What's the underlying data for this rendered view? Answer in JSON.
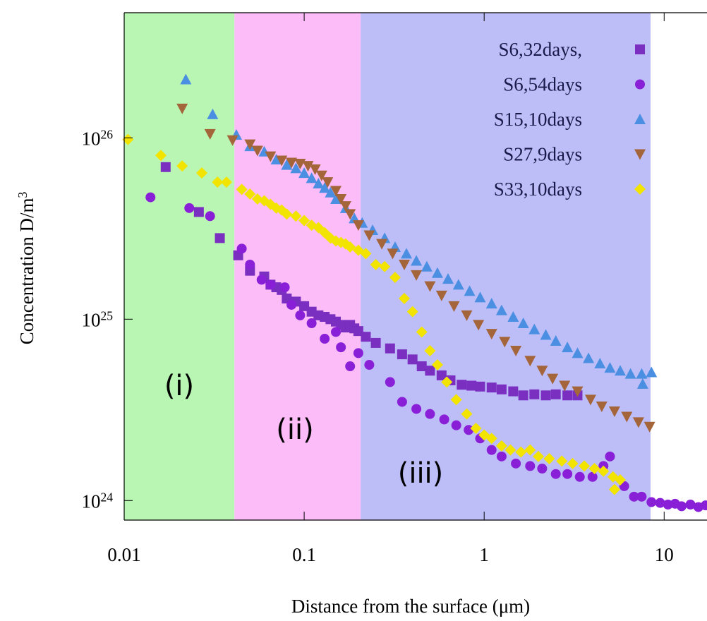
{
  "chart_data": {
    "type": "scatter",
    "x_label": "Distance from the surface (μm)",
    "y_label": "Concentration D/m^3",
    "xscale": "log",
    "yscale": "log",
    "xlim": [
      0.01,
      17.3
    ],
    "ylim": [
      7.8e+23,
      4.9e+26
    ],
    "xticks": [
      0.01,
      0.1,
      1,
      10
    ],
    "yticks": [
      {
        "value": 1e+24,
        "label": "10^24"
      },
      {
        "value": 1e+25,
        "label": "10^25"
      },
      {
        "value": 1e+26,
        "label": "10^26"
      }
    ],
    "legend": "upper right",
    "regions": [
      {
        "label": "(i)",
        "from": 0.01,
        "to": 0.041,
        "color": "#b9f6b3"
      },
      {
        "label": "(ii)",
        "from": 0.041,
        "to": 0.206,
        "color": "#fbbcf8"
      },
      {
        "label": "(iii)",
        "from": 0.206,
        "to": 8.4,
        "color": "#bdbdf8"
      }
    ],
    "series": [
      {
        "name": "S6,32days,",
        "color": "#7a2fc0",
        "marker": "square",
        "x": [
          0.017,
          0.026,
          0.034,
          0.043,
          0.05,
          0.06,
          0.065,
          0.07,
          0.075,
          0.08,
          0.09,
          0.1,
          0.11,
          0.12,
          0.13,
          0.14,
          0.15,
          0.16,
          0.17,
          0.18,
          0.19,
          0.2,
          0.22,
          0.25,
          0.3,
          0.35,
          0.4,
          0.45,
          0.5,
          0.58,
          0.65,
          0.75,
          0.85,
          0.95,
          1.1,
          1.25,
          1.45,
          1.65,
          1.9,
          2.2,
          2.5,
          2.9,
          3.3
        ],
        "values": [
          6.9e+25,
          3.9e+25,
          2.8e+25,
          2.25e+25,
          1.85e+25,
          1.72e+25,
          1.55e+25,
          1.5e+25,
          1.45e+25,
          1.3e+25,
          1.25e+25,
          1.18e+25,
          1.1e+25,
          1.05e+25,
          1.03e+25,
          1e+25,
          9.7e+24,
          9.3e+24,
          9e+24,
          9.3e+24,
          8.9e+24,
          8.6e+24,
          8e+24,
          7.4e+24,
          6.9e+24,
          6.4e+24,
          6e+24,
          5.5e+24,
          5.2e+24,
          4.9e+24,
          4.6e+24,
          4.35e+24,
          4.3e+24,
          4.25e+24,
          4.2e+24,
          4.1e+24,
          4e+24,
          3.8e+24,
          3.85e+24,
          3.8e+24,
          3.85e+24,
          3.8e+24,
          3.8e+24
        ]
      },
      {
        "name": "S6,54days",
        "color": "#8a1fd8",
        "marker": "circle",
        "x": [
          0.014,
          0.023,
          0.03,
          0.045,
          0.05,
          0.058,
          0.065,
          0.078,
          0.085,
          0.095,
          0.11,
          0.13,
          0.15,
          0.16,
          0.18,
          0.2,
          0.23,
          0.3,
          0.35,
          0.42,
          0.5,
          0.6,
          0.7,
          0.82,
          0.95,
          1.1,
          1.25,
          1.5,
          1.8,
          2.1,
          2.5,
          2.9,
          3.4,
          4,
          4.6,
          5,
          6,
          6.8,
          7.5,
          8.5,
          9.5,
          10.5,
          11.5,
          12.5,
          14,
          15.5,
          17
        ],
        "values": [
          4.7e+25,
          4.1e+25,
          3.7e+25,
          2.45e+25,
          2e+25,
          1.65e+25,
          1.55e+25,
          1.5e+25,
          1.2e+25,
          1.05e+25,
          9.5e+24,
          7.8e+24,
          8.5e+24,
          7e+24,
          5.5e+24,
          6.5e+24,
          5.6e+24,
          4.5e+24,
          3.5e+24,
          3.2e+24,
          3e+24,
          2.8e+24,
          2.6e+24,
          2.45e+24,
          2.2e+24,
          1.9e+24,
          1.75e+24,
          1.6e+24,
          1.55e+24,
          1.5e+24,
          1.4e+24,
          1.4e+24,
          1.35e+24,
          1.35e+24,
          1.55e+24,
          1.75e+24,
          1.2e+24,
          1.05e+24,
          1.05e+24,
          9.8e+23,
          9.7e+23,
          9.5e+23,
          9.6e+23,
          9.3e+23,
          9.5e+23,
          9.2e+23,
          9.4e+23
        ]
      },
      {
        "name": "S15,10days",
        "color": "#4a8fe2",
        "marker": "triangle-up",
        "x": [
          0.022,
          0.031,
          0.042,
          0.05,
          0.06,
          0.07,
          0.08,
          0.09,
          0.1,
          0.11,
          0.12,
          0.13,
          0.14,
          0.15,
          0.17,
          0.19,
          0.21,
          0.24,
          0.28,
          0.32,
          0.37,
          0.42,
          0.48,
          0.55,
          0.63,
          0.72,
          0.83,
          0.95,
          1.1,
          1.25,
          1.45,
          1.65,
          1.9,
          2.2,
          2.5,
          2.9,
          3.3,
          3.8,
          4.4,
          5,
          5.7,
          6.5,
          7.5,
          7.6,
          8.5
        ],
        "values": [
          2.1e+26,
          1.35e+26,
          1.04e+26,
          9e+25,
          8.4e+25,
          7.6e+25,
          7.1e+25,
          6.8e+25,
          6.4e+25,
          6e+25,
          5.6e+25,
          5.3e+25,
          5e+25,
          4.6e+25,
          4.1e+25,
          3.6e+25,
          3.4e+25,
          3.1e+25,
          2.8e+25,
          2.5e+25,
          2.3e+25,
          2.1e+25,
          1.95e+25,
          1.8e+25,
          1.67e+25,
          1.55e+25,
          1.43e+25,
          1.32e+25,
          1.22e+25,
          1.12e+25,
          1.03e+25,
          9.5e+24,
          8.8e+24,
          8.2e+24,
          7.6e+24,
          7e+24,
          6.5e+24,
          6.1e+24,
          5.7e+24,
          5.4e+24,
          5.2e+24,
          5e+24,
          5e+24,
          4.4e+24,
          5.1e+24
        ]
      },
      {
        "name": "S27,9days",
        "color": "#a4653a",
        "marker": "triangle-down",
        "x": [
          0.021,
          0.03,
          0.04,
          0.05,
          0.055,
          0.065,
          0.075,
          0.085,
          0.095,
          0.105,
          0.115,
          0.125,
          0.135,
          0.15,
          0.16,
          0.17,
          0.18,
          0.2,
          0.23,
          0.27,
          0.31,
          0.36,
          0.42,
          0.5,
          0.58,
          0.68,
          0.8,
          0.93,
          1.1,
          1.3,
          1.5,
          1.8,
          2.1,
          2.4,
          2.8,
          3.3,
          3.9,
          4.5,
          5.3,
          6.2,
          7.2,
          8.3
        ],
        "values": [
          1.45e+26,
          1.05e+26,
          9.7e+25,
          9.2e+25,
          8.5e+25,
          7.9e+25,
          7.5e+25,
          7.3e+25,
          7.2e+25,
          7e+25,
          6.7e+25,
          6.2e+25,
          5.7e+25,
          5.1e+25,
          4.6e+25,
          4.2e+25,
          3.8e+25,
          3.3e+25,
          2.9e+25,
          2.6e+25,
          2.3e+25,
          2e+25,
          1.75e+25,
          1.52e+25,
          1.35e+25,
          1.18e+25,
          1.05e+25,
          9.3e+24,
          8.3e+24,
          7.5e+24,
          6.7e+24,
          5.9e+24,
          5.2e+24,
          4.7e+24,
          4.3e+24,
          4e+24,
          3.6e+24,
          3.3e+24,
          3.1e+24,
          2.9e+24,
          2.7e+24,
          2.55e+24
        ]
      },
      {
        "name": "S33,10days",
        "color": "#f3e400",
        "marker": "diamond",
        "x": [
          0.0105,
          0.016,
          0.021,
          0.027,
          0.033,
          0.037,
          0.045,
          0.05,
          0.055,
          0.06,
          0.065,
          0.07,
          0.075,
          0.08,
          0.09,
          0.1,
          0.11,
          0.12,
          0.13,
          0.14,
          0.15,
          0.16,
          0.17,
          0.18,
          0.2,
          0.22,
          0.25,
          0.28,
          0.32,
          0.36,
          0.4,
          0.45,
          0.5,
          0.55,
          0.62,
          0.7,
          0.8,
          0.9,
          1,
          1.1,
          1.25,
          1.4,
          1.6,
          1.8,
          2,
          2.3,
          2.7,
          3.1,
          3.6,
          4.1,
          4.6,
          5.2,
          5.7,
          5.3
        ],
        "values": [
          9.8e+25,
          8e+25,
          7e+25,
          6.4e+25,
          5.7e+25,
          5.7e+25,
          5.2e+25,
          4.9e+25,
          4.6e+25,
          4.5e+25,
          4.3e+25,
          4.1e+25,
          4e+25,
          3.8e+25,
          3.7e+25,
          3.5e+25,
          3.3e+25,
          3.2e+25,
          3e+25,
          2.8e+25,
          2.7e+25,
          2.65e+25,
          2.6e+25,
          2.5e+25,
          2.4e+25,
          2.3e+25,
          2e+25,
          1.95e+25,
          1.7e+25,
          1.3e+25,
          1.1e+25,
          8.5e+24,
          6.7e+24,
          5.6e+24,
          4.5e+24,
          3.6e+24,
          3e+24,
          2.5e+24,
          2.3e+24,
          2.2e+24,
          2e+24,
          1.9e+24,
          1.85e+24,
          1.9e+24,
          1.75e+24,
          1.7e+24,
          1.65e+24,
          1.6e+24,
          1.55e+24,
          1.5e+24,
          1.45e+24,
          1.35e+24,
          1.3e+24,
          1.15e+24
        ]
      }
    ]
  }
}
